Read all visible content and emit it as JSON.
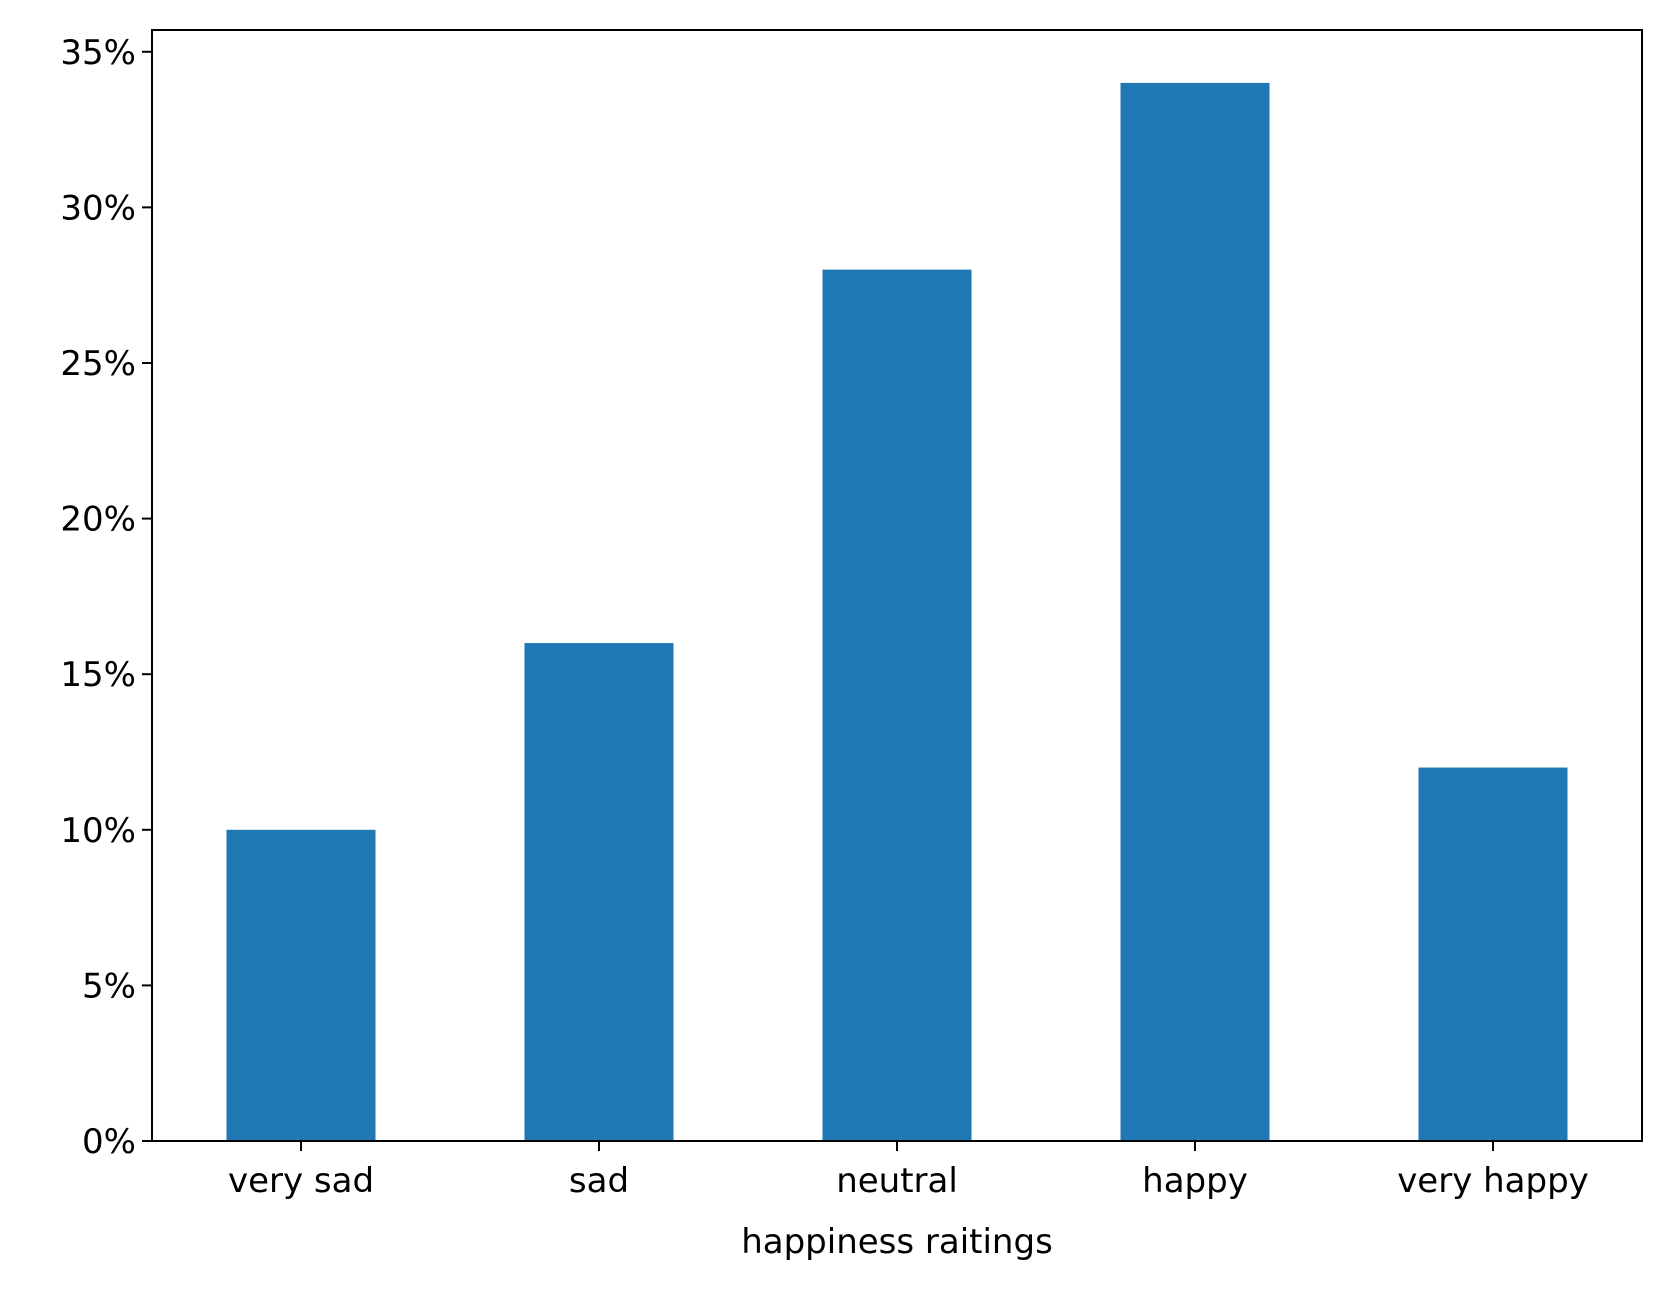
{
  "chart_data": {
    "type": "bar",
    "title": "",
    "xlabel": "happiness raitings",
    "ylabel": "",
    "categories": [
      "very sad",
      "sad",
      "neutral",
      "happy",
      "very happy"
    ],
    "values": [
      10,
      16,
      28,
      34,
      12
    ],
    "value_unit": "%",
    "ylim": [
      0,
      35.7
    ],
    "yticks": [
      0,
      5,
      10,
      15,
      20,
      25,
      30,
      35
    ],
    "ytick_labels": [
      "0%",
      "5%",
      "10%",
      "15%",
      "20%",
      "25%",
      "30%",
      "35%"
    ],
    "grid": false,
    "legend": "none",
    "bar_color": "#1f77b4"
  }
}
